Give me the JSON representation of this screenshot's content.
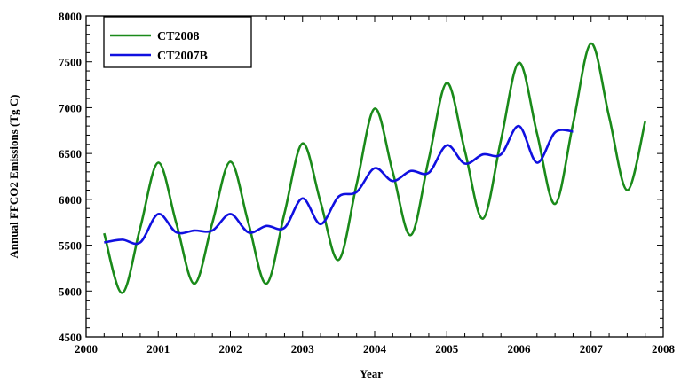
{
  "chart_data": {
    "type": "line",
    "xlabel": "Year",
    "ylabel": "Annual FFCO2 Emissions (Tg C)",
    "xlim": [
      2000,
      2008
    ],
    "ylim": [
      4500,
      8000
    ],
    "x_ticks": [
      2000,
      2001,
      2002,
      2003,
      2004,
      2005,
      2006,
      2007,
      2008
    ],
    "y_ticks": [
      4500,
      5000,
      5500,
      6000,
      6500,
      7000,
      7500,
      8000
    ],
    "grid": false,
    "legend_position": "top-left",
    "series": [
      {
        "name": "CT2008",
        "color": "#1a8a1a",
        "x": [
          2000.25,
          2000.5,
          2000.75,
          2001.0,
          2001.25,
          2001.5,
          2001.75,
          2002.0,
          2002.25,
          2002.5,
          2002.75,
          2003.0,
          2003.25,
          2003.5,
          2003.75,
          2004.0,
          2004.25,
          2004.5,
          2004.75,
          2005.0,
          2005.25,
          2005.5,
          2005.75,
          2006.0,
          2006.25,
          2006.5,
          2006.75,
          2007.0,
          2007.25,
          2007.5,
          2007.75
        ],
        "y": [
          5630,
          4980,
          5690,
          6400,
          5740,
          5080,
          5745,
          6410,
          5740,
          5080,
          5850,
          6610,
          5970,
          5340,
          6165,
          6990,
          6300,
          5610,
          6440,
          7270,
          6530,
          5790,
          6645,
          7490,
          6720,
          5950,
          6825,
          7700,
          6900,
          6100,
          6850
        ]
      },
      {
        "name": "CT2007B",
        "color": "#1010e0",
        "x": [
          2000.25,
          2000.5,
          2000.75,
          2001.0,
          2001.25,
          2001.5,
          2001.75,
          2002.0,
          2002.25,
          2002.5,
          2002.75,
          2003.0,
          2003.25,
          2003.5,
          2003.75,
          2004.0,
          2004.25,
          2004.5,
          2004.75,
          2005.0,
          2005.25,
          2005.5,
          2005.75,
          2006.0,
          2006.25,
          2006.5,
          2006.75
        ],
        "y": [
          5530,
          5560,
          5530,
          5840,
          5640,
          5660,
          5660,
          5840,
          5640,
          5710,
          5690,
          6010,
          5730,
          6030,
          6080,
          6340,
          6200,
          6310,
          6290,
          6590,
          6390,
          6490,
          6490,
          6800,
          6400,
          6730,
          6740
        ]
      }
    ]
  }
}
